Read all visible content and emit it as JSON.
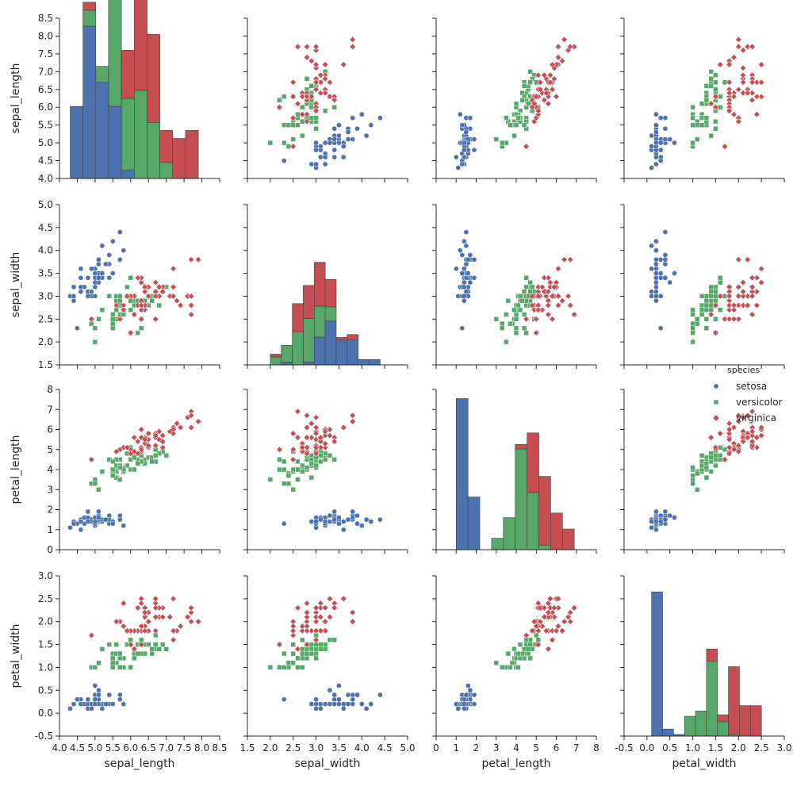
{
  "chart_data": {
    "type": "scatter",
    "title": "",
    "variables": [
      "sepal_length",
      "sepal_width",
      "petal_length",
      "petal_width"
    ],
    "axes": {
      "sepal_length": {
        "label": "sepal_length",
        "lim": [
          4.0,
          8.5
        ],
        "ticks": [
          "4.0",
          "4.5",
          "5.0",
          "5.5",
          "6.0",
          "6.5",
          "7.0",
          "7.5",
          "8.0",
          "8.5"
        ]
      },
      "sepal_width": {
        "label": "sepal_width",
        "lim": [
          1.5,
          5.0
        ],
        "ticks": [
          "1.5",
          "2.0",
          "2.5",
          "3.0",
          "3.5",
          "4.0",
          "4.5",
          "5.0"
        ]
      },
      "petal_length": {
        "label": "petal_length",
        "lim": [
          0,
          8
        ],
        "ticks": [
          "0",
          "1",
          "2",
          "3",
          "4",
          "5",
          "6",
          "7",
          "8"
        ]
      },
      "petal_width": {
        "label": "petal_width",
        "lim": [
          -0.5,
          3.0
        ],
        "ticks": [
          "-0.5",
          "0.0",
          "0.5",
          "1.0",
          "1.5",
          "2.0",
          "2.5",
          "3.0"
        ]
      }
    },
    "legend": {
      "title": "species",
      "position": "right, beside third row",
      "entries": [
        {
          "name": "setosa",
          "marker": "circle",
          "color": "#4c72b0"
        },
        {
          "name": "versicolor",
          "marker": "square",
          "color": "#55a868"
        },
        {
          "name": "virginica",
          "marker": "diamond",
          "color": "#c44e52"
        }
      ]
    },
    "histograms": {
      "sepal_length": {
        "bin_width": 0.36,
        "bins": [
          {
            "x": 4.3,
            "setosa": 0.9,
            "versicolor": 0,
            "virginica": 0
          },
          {
            "x": 4.66,
            "setosa": 1.9,
            "versicolor": 0.2,
            "virginica": 0.1
          },
          {
            "x": 5.02,
            "setosa": 1.2,
            "versicolor": 0.2,
            "virginica": 0
          },
          {
            "x": 5.38,
            "setosa": 0.9,
            "versicolor": 1.6,
            "virginica": 0.2
          },
          {
            "x": 5.74,
            "setosa": 0.1,
            "versicolor": 0.9,
            "virginica": 0.6
          },
          {
            "x": 6.1,
            "setosa": 0,
            "versicolor": 1.1,
            "virginica": 1.5
          },
          {
            "x": 6.46,
            "setosa": 0,
            "versicolor": 0.7,
            "virginica": 1.1
          },
          {
            "x": 6.82,
            "setosa": 0,
            "versicolor": 0.2,
            "virginica": 0.4
          },
          {
            "x": 7.18,
            "setosa": 0,
            "versicolor": 0,
            "virginica": 0.5
          },
          {
            "x": 7.54,
            "setosa": 0,
            "versicolor": 0,
            "virginica": 0.6
          }
        ]
      },
      "sepal_width": {
        "bin_width": 0.24,
        "bins": [
          {
            "x": 2.0,
            "setosa": 0,
            "versicolor": 0.22,
            "virginica": 0.08
          },
          {
            "x": 2.24,
            "setosa": 0.07,
            "versicolor": 0.48,
            "virginica": 0
          },
          {
            "x": 2.48,
            "setosa": 0,
            "versicolor": 0.92,
            "virginica": 0.8
          },
          {
            "x": 2.72,
            "setosa": 0.08,
            "versicolor": 1.22,
            "virginica": 0.93
          },
          {
            "x": 2.96,
            "setosa": 0.78,
            "versicolor": 0.87,
            "virginica": 1.23
          },
          {
            "x": 3.2,
            "setosa": 1.23,
            "versicolor": 0.4,
            "virginica": 0.77
          },
          {
            "x": 3.44,
            "setosa": 0.7,
            "versicolor": 0,
            "virginica": 0.07
          },
          {
            "x": 3.68,
            "setosa": 0.7,
            "versicolor": 0,
            "virginica": 0.15
          },
          {
            "x": 3.92,
            "setosa": 0.15,
            "versicolor": 0,
            "virginica": 0
          },
          {
            "x": 4.16,
            "setosa": 0.15,
            "versicolor": 0,
            "virginica": 0
          }
        ]
      },
      "petal_length": {
        "bin_width": 0.59,
        "bins": [
          {
            "x": 1.0,
            "setosa": 6.6,
            "versicolor": 0,
            "virginica": 0
          },
          {
            "x": 1.59,
            "setosa": 2.3,
            "versicolor": 0,
            "virginica": 0
          },
          {
            "x": 2.77,
            "setosa": 0,
            "versicolor": 0.5,
            "virginica": 0
          },
          {
            "x": 3.36,
            "setosa": 0,
            "versicolor": 1.4,
            "virginica": 0
          },
          {
            "x": 3.95,
            "setosa": 0,
            "versicolor": 4.4,
            "virginica": 0.2
          },
          {
            "x": 4.54,
            "setosa": 0,
            "versicolor": 2.5,
            "virginica": 2.6
          },
          {
            "x": 5.13,
            "setosa": 0,
            "versicolor": 0.2,
            "virginica": 3.0
          },
          {
            "x": 5.72,
            "setosa": 0,
            "versicolor": 0,
            "virginica": 1.6
          },
          {
            "x": 6.31,
            "setosa": 0,
            "versicolor": 0,
            "virginica": 0.9
          }
        ]
      },
      "petal_width": {
        "bin_width": 0.24,
        "bins": [
          {
            "x": 0.1,
            "setosa": 2.7,
            "versicolor": 0,
            "virginica": 0
          },
          {
            "x": 0.34,
            "setosa": 0.13,
            "versicolor": 0,
            "virginica": 0
          },
          {
            "x": 0.58,
            "setosa": 0.03,
            "versicolor": 0,
            "virginica": 0
          },
          {
            "x": 0.82,
            "setosa": 0,
            "versicolor": 0.37,
            "virginica": 0
          },
          {
            "x": 1.06,
            "setosa": 0,
            "versicolor": 0.47,
            "virginica": 0
          },
          {
            "x": 1.3,
            "setosa": 0,
            "versicolor": 1.4,
            "virginica": 0.23
          },
          {
            "x": 1.54,
            "setosa": 0,
            "versicolor": 0.27,
            "virginica": 0.13
          },
          {
            "x": 1.78,
            "setosa": 0,
            "versicolor": 0.03,
            "virginica": 1.27
          },
          {
            "x": 2.02,
            "setosa": 0,
            "versicolor": 0,
            "virginica": 0.57
          },
          {
            "x": 2.26,
            "setosa": 0,
            "versicolor": 0,
            "virginica": 0.57
          }
        ]
      }
    },
    "points": {
      "setosa": [
        [
          5.1,
          3.5,
          1.4,
          0.2
        ],
        [
          4.9,
          3.0,
          1.4,
          0.2
        ],
        [
          4.7,
          3.2,
          1.3,
          0.2
        ],
        [
          4.6,
          3.1,
          1.5,
          0.2
        ],
        [
          5.0,
          3.6,
          1.4,
          0.2
        ],
        [
          5.4,
          3.9,
          1.7,
          0.4
        ],
        [
          4.6,
          3.4,
          1.4,
          0.3
        ],
        [
          5.0,
          3.4,
          1.5,
          0.2
        ],
        [
          4.4,
          2.9,
          1.4,
          0.2
        ],
        [
          4.9,
          3.1,
          1.5,
          0.1
        ],
        [
          5.4,
          3.7,
          1.5,
          0.2
        ],
        [
          4.8,
          3.4,
          1.6,
          0.2
        ],
        [
          4.8,
          3.0,
          1.4,
          0.1
        ],
        [
          4.3,
          3.0,
          1.1,
          0.1
        ],
        [
          5.8,
          4.0,
          1.2,
          0.2
        ],
        [
          5.7,
          4.4,
          1.5,
          0.4
        ],
        [
          5.4,
          3.9,
          1.3,
          0.4
        ],
        [
          5.1,
          3.5,
          1.4,
          0.3
        ],
        [
          5.7,
          3.8,
          1.7,
          0.3
        ],
        [
          5.1,
          3.8,
          1.5,
          0.3
        ],
        [
          5.4,
          3.4,
          1.7,
          0.2
        ],
        [
          5.1,
          3.7,
          1.5,
          0.4
        ],
        [
          4.6,
          3.6,
          1.0,
          0.2
        ],
        [
          5.1,
          3.3,
          1.7,
          0.5
        ],
        [
          4.8,
          3.4,
          1.9,
          0.2
        ],
        [
          5.0,
          3.0,
          1.6,
          0.2
        ],
        [
          5.0,
          3.4,
          1.6,
          0.4
        ],
        [
          5.2,
          3.5,
          1.5,
          0.2
        ],
        [
          5.2,
          3.4,
          1.4,
          0.2
        ],
        [
          4.7,
          3.2,
          1.6,
          0.2
        ],
        [
          4.8,
          3.1,
          1.6,
          0.2
        ],
        [
          5.4,
          3.4,
          1.5,
          0.4
        ],
        [
          5.2,
          4.1,
          1.5,
          0.1
        ],
        [
          5.5,
          4.2,
          1.4,
          0.2
        ],
        [
          4.9,
          3.1,
          1.5,
          0.2
        ],
        [
          5.0,
          3.2,
          1.2,
          0.2
        ],
        [
          5.5,
          3.5,
          1.3,
          0.2
        ],
        [
          4.9,
          3.6,
          1.4,
          0.1
        ],
        [
          4.4,
          3.0,
          1.3,
          0.2
        ],
        [
          5.1,
          3.4,
          1.5,
          0.2
        ],
        [
          5.0,
          3.5,
          1.3,
          0.3
        ],
        [
          4.5,
          2.3,
          1.3,
          0.3
        ],
        [
          4.4,
          3.2,
          1.3,
          0.2
        ],
        [
          5.0,
          3.5,
          1.6,
          0.6
        ],
        [
          5.1,
          3.8,
          1.9,
          0.4
        ],
        [
          4.8,
          3.0,
          1.4,
          0.3
        ],
        [
          5.1,
          3.8,
          1.6,
          0.2
        ],
        [
          4.6,
          3.2,
          1.4,
          0.2
        ],
        [
          5.3,
          3.7,
          1.5,
          0.2
        ],
        [
          5.0,
          3.3,
          1.4,
          0.2
        ]
      ],
      "versicolor": [
        [
          7.0,
          3.2,
          4.7,
          1.4
        ],
        [
          6.4,
          3.2,
          4.5,
          1.5
        ],
        [
          6.9,
          3.1,
          4.9,
          1.5
        ],
        [
          5.5,
          2.3,
          4.0,
          1.3
        ],
        [
          6.5,
          2.8,
          4.6,
          1.5
        ],
        [
          5.7,
          2.8,
          4.5,
          1.3
        ],
        [
          6.3,
          3.3,
          4.7,
          1.6
        ],
        [
          4.9,
          2.4,
          3.3,
          1.0
        ],
        [
          6.6,
          2.9,
          4.6,
          1.3
        ],
        [
          5.2,
          2.7,
          3.9,
          1.4
        ],
        [
          5.0,
          2.0,
          3.5,
          1.0
        ],
        [
          5.9,
          3.0,
          4.2,
          1.5
        ],
        [
          6.0,
          2.2,
          4.0,
          1.0
        ],
        [
          6.1,
          2.9,
          4.7,
          1.4
        ],
        [
          5.6,
          2.9,
          3.6,
          1.3
        ],
        [
          6.7,
          3.1,
          4.4,
          1.4
        ],
        [
          5.6,
          3.0,
          4.5,
          1.5
        ],
        [
          5.8,
          2.7,
          4.1,
          1.0
        ],
        [
          6.2,
          2.2,
          4.5,
          1.5
        ],
        [
          5.6,
          2.5,
          3.9,
          1.1
        ],
        [
          5.9,
          3.2,
          4.8,
          1.8
        ],
        [
          6.1,
          2.8,
          4.0,
          1.3
        ],
        [
          6.3,
          2.5,
          4.9,
          1.5
        ],
        [
          6.1,
          2.8,
          4.7,
          1.2
        ],
        [
          6.4,
          2.9,
          4.3,
          1.3
        ],
        [
          6.6,
          3.0,
          4.4,
          1.4
        ],
        [
          6.8,
          2.8,
          4.8,
          1.4
        ],
        [
          6.7,
          3.0,
          5.0,
          1.7
        ],
        [
          6.0,
          2.9,
          4.5,
          1.5
        ],
        [
          5.7,
          2.6,
          3.5,
          1.0
        ],
        [
          5.5,
          2.4,
          3.8,
          1.1
        ],
        [
          5.5,
          2.4,
          3.7,
          1.0
        ],
        [
          5.8,
          2.7,
          3.9,
          1.2
        ],
        [
          6.0,
          2.7,
          5.1,
          1.6
        ],
        [
          5.4,
          3.0,
          4.5,
          1.5
        ],
        [
          6.0,
          3.4,
          4.5,
          1.6
        ],
        [
          6.7,
          3.1,
          4.7,
          1.5
        ],
        [
          6.3,
          2.3,
          4.4,
          1.3
        ],
        [
          5.6,
          3.0,
          4.1,
          1.3
        ],
        [
          5.5,
          2.5,
          4.0,
          1.3
        ],
        [
          5.5,
          2.6,
          4.4,
          1.2
        ],
        [
          6.1,
          3.0,
          4.6,
          1.4
        ],
        [
          5.8,
          2.6,
          4.0,
          1.2
        ],
        [
          5.0,
          2.3,
          3.3,
          1.0
        ],
        [
          5.6,
          2.7,
          4.2,
          1.3
        ],
        [
          5.7,
          3.0,
          4.2,
          1.2
        ],
        [
          5.7,
          2.9,
          4.2,
          1.3
        ],
        [
          6.2,
          2.9,
          4.3,
          1.3
        ],
        [
          5.1,
          2.5,
          3.0,
          1.1
        ],
        [
          5.7,
          2.8,
          4.1,
          1.3
        ]
      ],
      "virginica": [
        [
          6.3,
          3.3,
          6.0,
          2.5
        ],
        [
          5.8,
          2.7,
          5.1,
          1.9
        ],
        [
          7.1,
          3.0,
          5.9,
          2.1
        ],
        [
          6.3,
          2.9,
          5.6,
          1.8
        ],
        [
          6.5,
          3.0,
          5.8,
          2.2
        ],
        [
          7.6,
          3.0,
          6.6,
          2.1
        ],
        [
          4.9,
          2.5,
          4.5,
          1.7
        ],
        [
          7.3,
          2.9,
          6.3,
          1.8
        ],
        [
          6.7,
          2.5,
          5.8,
          1.8
        ],
        [
          7.2,
          3.6,
          6.1,
          2.5
        ],
        [
          6.5,
          3.2,
          5.1,
          2.0
        ],
        [
          6.4,
          2.7,
          5.3,
          1.9
        ],
        [
          6.8,
          3.0,
          5.5,
          2.1
        ],
        [
          5.7,
          2.5,
          5.0,
          2.0
        ],
        [
          5.8,
          2.8,
          5.1,
          2.4
        ],
        [
          6.4,
          3.2,
          5.3,
          2.3
        ],
        [
          6.5,
          3.0,
          5.5,
          1.8
        ],
        [
          7.7,
          3.8,
          6.7,
          2.2
        ],
        [
          7.7,
          2.6,
          6.9,
          2.3
        ],
        [
          6.0,
          2.2,
          5.0,
          1.5
        ],
        [
          6.9,
          3.2,
          5.7,
          2.3
        ],
        [
          5.6,
          2.8,
          4.9,
          2.0
        ],
        [
          7.7,
          2.8,
          6.7,
          2.0
        ],
        [
          6.3,
          2.7,
          4.9,
          1.8
        ],
        [
          6.7,
          3.3,
          5.7,
          2.1
        ],
        [
          7.2,
          3.2,
          6.0,
          1.8
        ],
        [
          6.2,
          2.8,
          4.8,
          1.8
        ],
        [
          6.1,
          3.0,
          4.9,
          1.8
        ],
        [
          6.4,
          2.8,
          5.6,
          2.1
        ],
        [
          7.2,
          3.0,
          5.8,
          1.6
        ],
        [
          7.4,
          2.8,
          6.1,
          1.9
        ],
        [
          7.9,
          3.8,
          6.4,
          2.0
        ],
        [
          6.4,
          2.8,
          5.6,
          2.2
        ],
        [
          6.3,
          2.8,
          5.1,
          1.5
        ],
        [
          6.1,
          2.6,
          5.6,
          1.4
        ],
        [
          7.7,
          3.0,
          6.1,
          2.3
        ],
        [
          6.3,
          3.4,
          5.6,
          2.4
        ],
        [
          6.4,
          3.1,
          5.5,
          1.8
        ],
        [
          6.0,
          3.0,
          4.8,
          1.8
        ],
        [
          6.9,
          3.1,
          5.4,
          2.1
        ],
        [
          6.7,
          3.1,
          5.6,
          2.4
        ],
        [
          6.9,
          3.1,
          5.1,
          2.3
        ],
        [
          5.8,
          2.7,
          5.1,
          1.9
        ],
        [
          6.8,
          3.2,
          5.9,
          2.3
        ],
        [
          6.7,
          3.3,
          5.7,
          2.5
        ],
        [
          6.7,
          3.0,
          5.2,
          2.3
        ],
        [
          6.3,
          2.5,
          5.0,
          1.9
        ],
        [
          6.5,
          3.0,
          5.2,
          2.0
        ],
        [
          6.2,
          3.4,
          5.4,
          2.3
        ],
        [
          5.9,
          3.0,
          5.1,
          1.8
        ]
      ]
    }
  }
}
